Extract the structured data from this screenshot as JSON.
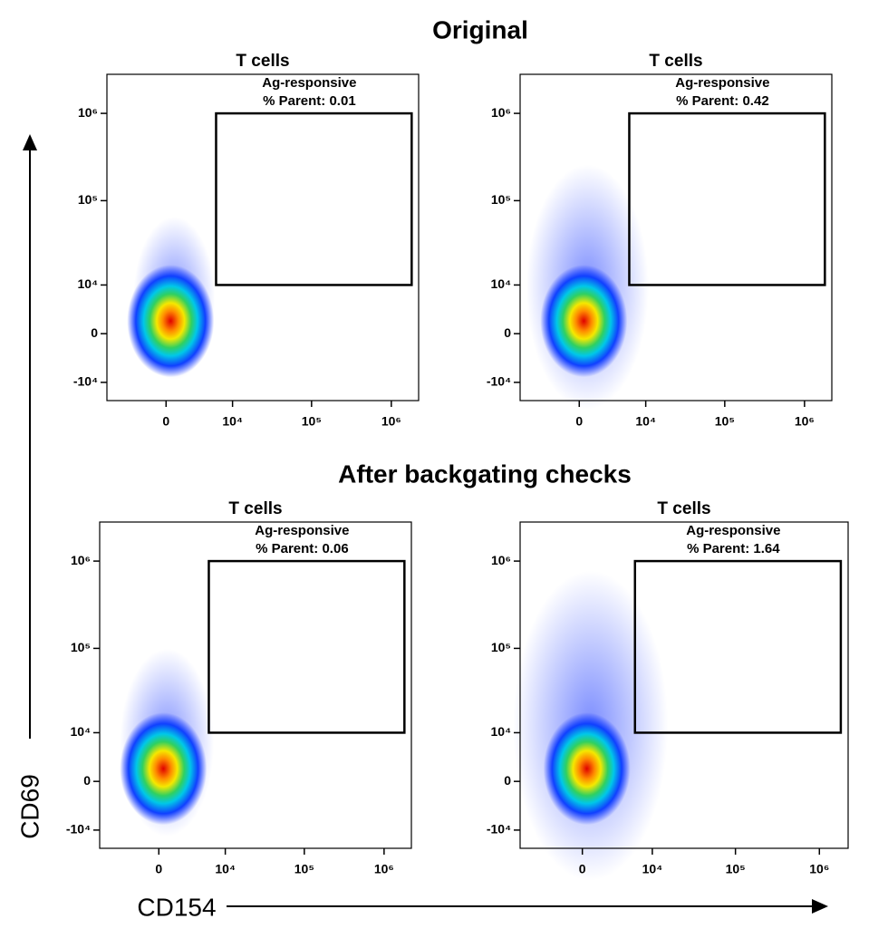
{
  "top_title": "Original",
  "bottom_title": "After backgating checks",
  "y_axis_label": "CD69",
  "x_axis_label": "CD154",
  "chart_data": [
    {
      "type": "density",
      "title": "T cells",
      "gate_name": "Ag-responsive",
      "gate_label": "% Parent:",
      "gate_value": 0.01,
      "gate": {
        "x": [
          6000,
          1800000
        ],
        "y": [
          10000,
          1000000
        ]
      },
      "xscale": "arcsinh",
      "xcofactor": 3000,
      "yscale": "arcsinh",
      "ycofactor": 6000,
      "xlim": [
        -8000,
        2200000
      ],
      "ylim": [
        -17000,
        2800000
      ],
      "xticks": [
        0,
        {
          "value": 10000,
          "label": "10⁴"
        },
        {
          "value": 100000,
          "label": "10⁵"
        },
        {
          "value": 1000000,
          "label": "10⁶"
        }
      ],
      "yticks": [
        {
          "value": -10000,
          "label": "-10⁴"
        },
        0,
        {
          "value": 10000,
          "label": "10⁴"
        },
        {
          "value": 100000,
          "label": "10⁵"
        },
        {
          "value": 1000000,
          "label": "10⁶"
        }
      ]
    },
    {
      "type": "density",
      "title": "T cells",
      "gate_name": "Ag-responsive",
      "gate_label": "% Parent:",
      "gate_value": 0.42,
      "gate": {
        "x": [
          6000,
          1800000
        ],
        "y": [
          10000,
          1000000
        ]
      },
      "xscale": "arcsinh",
      "xcofactor": 3000,
      "yscale": "arcsinh",
      "ycofactor": 6000,
      "xlim": [
        -8000,
        2200000
      ],
      "ylim": [
        -17000,
        2800000
      ],
      "xticks": [
        0,
        {
          "value": 10000,
          "label": "10⁴"
        },
        {
          "value": 100000,
          "label": "10⁵"
        },
        {
          "value": 1000000,
          "label": "10⁶"
        }
      ],
      "yticks": [
        {
          "value": -10000,
          "label": "-10⁴"
        },
        0,
        {
          "value": 10000,
          "label": "10⁴"
        },
        {
          "value": 100000,
          "label": "10⁵"
        },
        {
          "value": 1000000,
          "label": "10⁶"
        }
      ]
    },
    {
      "type": "density",
      "title": "T cells",
      "gate_name": "Ag-responsive",
      "gate_label": "% Parent:",
      "gate_value": 0.06,
      "gate": {
        "x": [
          6000,
          1800000
        ],
        "y": [
          10000,
          1000000
        ]
      },
      "xscale": "arcsinh",
      "xcofactor": 3000,
      "yscale": "arcsinh",
      "ycofactor": 6000,
      "xlim": [
        -8000,
        2200000
      ],
      "ylim": [
        -17000,
        2800000
      ],
      "xticks": [
        0,
        {
          "value": 10000,
          "label": "10⁴"
        },
        {
          "value": 100000,
          "label": "10⁵"
        },
        {
          "value": 1000000,
          "label": "10⁶"
        }
      ],
      "yticks": [
        {
          "value": -10000,
          "label": "-10⁴"
        },
        0,
        {
          "value": 10000,
          "label": "10⁴"
        },
        {
          "value": 100000,
          "label": "10⁵"
        },
        {
          "value": 1000000,
          "label": "10⁶"
        }
      ]
    },
    {
      "type": "density",
      "title": "T cells",
      "gate_name": "Ag-responsive",
      "gate_label": "% Parent:",
      "gate_value": 1.64,
      "gate": {
        "x": [
          6000,
          1800000
        ],
        "y": [
          10000,
          1000000
        ]
      },
      "xscale": "arcsinh",
      "xcofactor": 3000,
      "yscale": "arcsinh",
      "ycofactor": 6000,
      "xlim": [
        -8000,
        2200000
      ],
      "ylim": [
        -17000,
        2800000
      ],
      "xticks": [
        0,
        {
          "value": 10000,
          "label": "10⁴"
        },
        {
          "value": 100000,
          "label": "10⁵"
        },
        {
          "value": 1000000,
          "label": "10⁶"
        }
      ],
      "yticks": [
        {
          "value": -10000,
          "label": "-10⁴"
        },
        0,
        {
          "value": 10000,
          "label": "10⁴"
        },
        {
          "value": 100000,
          "label": "10⁵"
        },
        {
          "value": 1000000,
          "label": "10⁶"
        }
      ]
    }
  ]
}
